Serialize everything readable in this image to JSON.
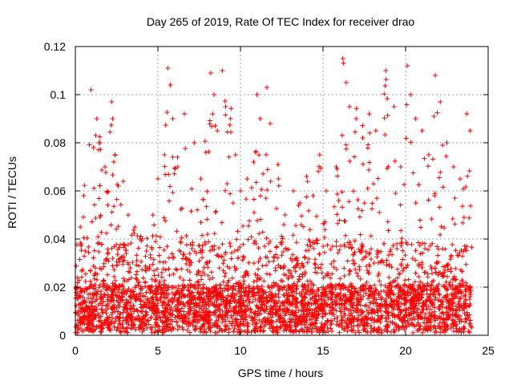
{
  "chart_data": {
    "type": "scatter",
    "title": "Day 265 of 2019, Rate Of TEC Index for receiver drao",
    "xlabel": "GPS time / hours",
    "ylabel": "ROTI / TECUs",
    "xlim": [
      0,
      25
    ],
    "ylim": [
      0,
      0.12
    ],
    "x_ticks": [
      0,
      5,
      10,
      15,
      20,
      25
    ],
    "x_tick_labels": [
      "0",
      "5",
      "10",
      "15",
      "20",
      "25"
    ],
    "y_ticks": [
      0,
      0.02,
      0.04,
      0.06,
      0.08,
      0.1,
      0.12
    ],
    "y_tick_labels": [
      "0",
      "0.02",
      "0.04",
      "0.06",
      "0.08",
      "0.1",
      "0.12"
    ],
    "grid": true,
    "marker": "plus",
    "colors": {
      "points": "#ff0000",
      "grid": "#a0a0a0",
      "axes": "#000000"
    },
    "series": [
      {
        "x_range": [
          0,
          24
        ],
        "points": [
          [
            0.3,
            0.045
          ],
          [
            0.5,
            0.058
          ],
          [
            0.95,
            0.102
          ],
          [
            1.1,
            0.078
          ],
          [
            1.3,
            0.09
          ],
          [
            1.5,
            0.08
          ],
          [
            1.8,
            0.07
          ],
          [
            2.2,
            0.097
          ],
          [
            2.25,
            0.09
          ],
          [
            2.4,
            0.075
          ],
          [
            2.6,
            0.062
          ],
          [
            2.9,
            0.064
          ],
          [
            3.2,
            0.05
          ],
          [
            3.6,
            0.045
          ],
          [
            3.9,
            0.04
          ],
          [
            4.3,
            0.035
          ],
          [
            4.7,
            0.05
          ],
          [
            5.0,
            0.065
          ],
          [
            5.4,
            0.075
          ],
          [
            5.6,
            0.111
          ],
          [
            5.75,
            0.104
          ],
          [
            5.9,
            0.09
          ],
          [
            6.2,
            0.07
          ],
          [
            6.6,
            0.092
          ],
          [
            7.2,
            0.08
          ],
          [
            7.6,
            0.065
          ],
          [
            7.9,
            0.076
          ],
          [
            8.2,
            0.109
          ],
          [
            8.4,
            0.1
          ],
          [
            8.6,
            0.085
          ],
          [
            8.9,
            0.11
          ],
          [
            9.1,
            0.095
          ],
          [
            9.4,
            0.09
          ],
          [
            9.7,
            0.075
          ],
          [
            10.0,
            0.06
          ],
          [
            10.4,
            0.065
          ],
          [
            10.8,
            0.072
          ],
          [
            11.0,
            0.1
          ],
          [
            11.2,
            0.09
          ],
          [
            11.6,
            0.103
          ],
          [
            11.8,
            0.088
          ],
          [
            12.3,
            0.065
          ],
          [
            12.7,
            0.05
          ],
          [
            13.2,
            0.06
          ],
          [
            13.6,
            0.055
          ],
          [
            14.0,
            0.066
          ],
          [
            14.4,
            0.058
          ],
          [
            14.8,
            0.075
          ],
          [
            15.2,
            0.06
          ],
          [
            15.8,
            0.07
          ],
          [
            16.2,
            0.115
          ],
          [
            16.4,
            0.105
          ],
          [
            16.6,
            0.095
          ],
          [
            17.0,
            0.09
          ],
          [
            17.4,
            0.082
          ],
          [
            17.8,
            0.092
          ],
          [
            18.2,
            0.085
          ],
          [
            18.8,
            0.11
          ],
          [
            19.3,
            0.095
          ],
          [
            19.7,
            0.07
          ],
          [
            20.1,
            0.112
          ],
          [
            20.3,
            0.1
          ],
          [
            20.6,
            0.09
          ],
          [
            21.0,
            0.085
          ],
          [
            21.4,
            0.075
          ],
          [
            21.8,
            0.108
          ],
          [
            22.1,
            0.097
          ],
          [
            22.5,
            0.08
          ],
          [
            22.9,
            0.07
          ],
          [
            23.3,
            0.065
          ],
          [
            23.7,
            0.092
          ],
          [
            23.9,
            0.085
          ]
        ]
      }
    ]
  }
}
